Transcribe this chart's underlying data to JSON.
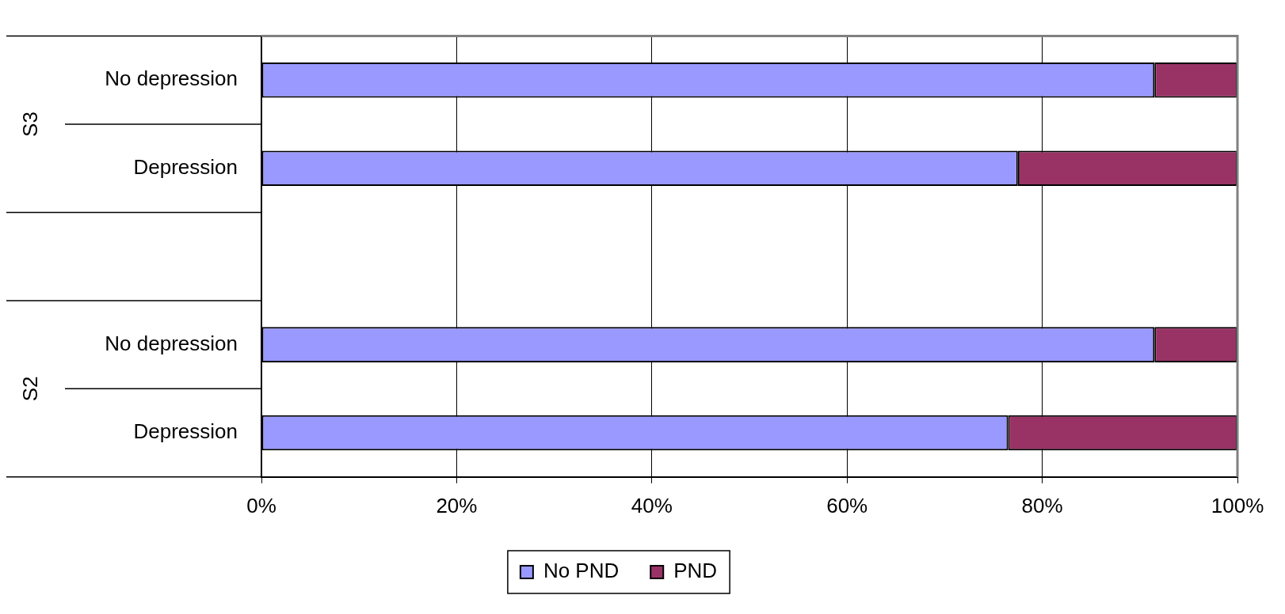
{
  "chart_data": {
    "type": "bar",
    "orientation": "horizontal",
    "stacked": true,
    "categories": [
      "No depression",
      "Depression",
      null,
      "No depression",
      "Depression"
    ],
    "series": [
      {
        "name": "No PND",
        "color": "#9999ff",
        "values": [
          91.5,
          77.5,
          null,
          91.5,
          76.5
        ]
      },
      {
        "name": "PND",
        "color": "#993366",
        "values": [
          8.5,
          22.5,
          null,
          8.5,
          23.5
        ]
      }
    ],
    "xlim": [
      0,
      100
    ],
    "xticks": [
      {
        "value": 0,
        "label": "0%"
      },
      {
        "value": 20,
        "label": "20%"
      },
      {
        "value": 40,
        "label": "40%"
      },
      {
        "value": 60,
        "label": "60%"
      },
      {
        "value": 80,
        "label": "80%"
      },
      {
        "value": 100,
        "label": "100%"
      }
    ],
    "grid": "x",
    "legend": "bottom",
    "annotations": [
      "S3",
      "S2"
    ]
  }
}
